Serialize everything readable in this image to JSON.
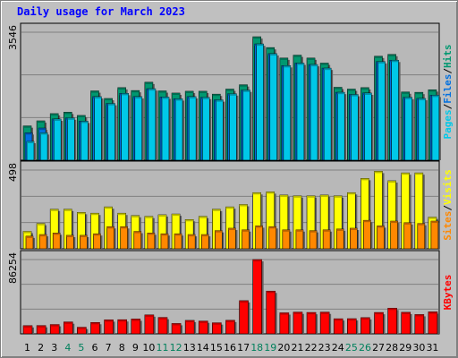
{
  "title": "Daily usage for March 2023",
  "colors": {
    "background": "#c0c0c0",
    "panel_bg": "#b8b8b8",
    "weekday_label": "#000000",
    "weekend_label": "#00805c",
    "pages": "#00c8e8",
    "files": "#0070e0",
    "hits": "#009870",
    "visits": "#ffff00",
    "sites": "#ff8800",
    "kbytes": "#ff0000"
  },
  "legend": {
    "panel1": [
      "Pages",
      "/",
      "Files",
      "/",
      "Hits"
    ],
    "panel2": [
      "Sites",
      "/",
      "Visits"
    ],
    "panel3": [
      "KBytes"
    ]
  },
  "chart_data": [
    {
      "type": "bar",
      "panel": "hits-files-pages",
      "categories": [
        "1",
        "2",
        "3",
        "4",
        "5",
        "6",
        "7",
        "8",
        "9",
        "10",
        "11",
        "12",
        "13",
        "14",
        "15",
        "16",
        "17",
        "18",
        "19",
        "20",
        "21",
        "22",
        "23",
        "24",
        "25",
        "26",
        "27",
        "28",
        "29",
        "30",
        "31"
      ],
      "ymax_label": "3546",
      "ylim": [
        0,
        3546
      ],
      "series": [
        {
          "name": "Hits",
          "values": [
            950,
            1090,
            1290,
            1330,
            1240,
            1920,
            1710,
            2010,
            1930,
            2160,
            1920,
            1860,
            1910,
            1910,
            1830,
            1970,
            2090,
            3420,
            3120,
            2830,
            2910,
            2830,
            2690,
            2020,
            1970,
            2010,
            2880,
            2930,
            1890,
            1880,
            1950
          ]
        },
        {
          "name": "Files",
          "values": [
            760,
            890,
            1140,
            1170,
            1080,
            1760,
            1570,
            1850,
            1760,
            1980,
            1750,
            1700,
            1760,
            1740,
            1670,
            1840,
            1940,
            3220,
            2950,
            2620,
            2690,
            2650,
            2550,
            1880,
            1820,
            1860,
            2730,
            2770,
            1740,
            1710,
            1800
          ]
        },
        {
          "name": "Pages",
          "values": [
            520,
            760,
            1140,
            1170,
            1080,
            1760,
            1570,
            1850,
            1760,
            1980,
            1750,
            1700,
            1760,
            1740,
            1670,
            1840,
            1940,
            3220,
            2950,
            2620,
            2690,
            2650,
            2550,
            1880,
            1820,
            1860,
            2730,
            2770,
            1740,
            1710,
            1800
          ]
        }
      ]
    },
    {
      "type": "bar",
      "panel": "visits-sites",
      "categories": [
        "1",
        "2",
        "3",
        "4",
        "5",
        "6",
        "7",
        "8",
        "9",
        "10",
        "11",
        "12",
        "13",
        "14",
        "15",
        "16",
        "17",
        "18",
        "19",
        "20",
        "21",
        "22",
        "23",
        "24",
        "25",
        "26",
        "27",
        "28",
        "29",
        "30",
        "31"
      ],
      "ymax_label": "498",
      "ylim": [
        0,
        498
      ],
      "series": [
        {
          "name": "Visits",
          "values": [
            110,
            160,
            250,
            250,
            230,
            225,
            265,
            225,
            210,
            205,
            215,
            220,
            185,
            205,
            250,
            265,
            280,
            355,
            360,
            340,
            335,
            335,
            340,
            335,
            355,
            445,
            490,
            430,
            480,
            480,
            200
          ]
        },
        {
          "name": "Sites",
          "values": [
            80,
            90,
            100,
            85,
            85,
            95,
            140,
            140,
            110,
            100,
            95,
            95,
            90,
            90,
            115,
            130,
            120,
            145,
            140,
            120,
            120,
            115,
            120,
            125,
            130,
            180,
            145,
            175,
            165,
            160,
            175
          ]
        }
      ]
    },
    {
      "type": "bar",
      "panel": "kbytes",
      "categories": [
        "1",
        "2",
        "3",
        "4",
        "5",
        "6",
        "7",
        "8",
        "9",
        "10",
        "11",
        "12",
        "13",
        "14",
        "15",
        "16",
        "17",
        "18",
        "19",
        "20",
        "21",
        "22",
        "23",
        "24",
        "25",
        "26",
        "27",
        "28",
        "29",
        "30",
        "31"
      ],
      "ymax_label": "86254",
      "ylim": [
        0,
        86254
      ],
      "series": [
        {
          "name": "KBytes",
          "values": [
            9500,
            9600,
            10800,
            13800,
            7600,
            13200,
            16200,
            16400,
            17200,
            22000,
            19000,
            12000,
            15600,
            14800,
            12800,
            15700,
            38500,
            86254,
            49600,
            24400,
            25200,
            24800,
            25200,
            17500,
            17600,
            18800,
            24800,
            29800,
            25000,
            22400,
            25500
          ]
        }
      ]
    }
  ],
  "x_labels": [
    {
      "t": "1",
      "we": false
    },
    {
      "t": "2",
      "we": false
    },
    {
      "t": "3",
      "we": false
    },
    {
      "t": "4",
      "we": true
    },
    {
      "t": "5",
      "we": true
    },
    {
      "t": "6",
      "we": false
    },
    {
      "t": "7",
      "we": false
    },
    {
      "t": "8",
      "we": false
    },
    {
      "t": "9",
      "we": false
    },
    {
      "t": "10",
      "we": false
    },
    {
      "t": "11",
      "we": true
    },
    {
      "t": "12",
      "we": true
    },
    {
      "t": "13",
      "we": false
    },
    {
      "t": "14",
      "we": false
    },
    {
      "t": "15",
      "we": false
    },
    {
      "t": "16",
      "we": false
    },
    {
      "t": "17",
      "we": false
    },
    {
      "t": "18",
      "we": true
    },
    {
      "t": "19",
      "we": true
    },
    {
      "t": "20",
      "we": false
    },
    {
      "t": "21",
      "we": false
    },
    {
      "t": "22",
      "we": false
    },
    {
      "t": "23",
      "we": false
    },
    {
      "t": "24",
      "we": false
    },
    {
      "t": "25",
      "we": true
    },
    {
      "t": "26",
      "we": true
    },
    {
      "t": "27",
      "we": false
    },
    {
      "t": "28",
      "we": false
    },
    {
      "t": "29",
      "we": false
    },
    {
      "t": "30",
      "we": false
    },
    {
      "t": "31",
      "we": false
    }
  ]
}
